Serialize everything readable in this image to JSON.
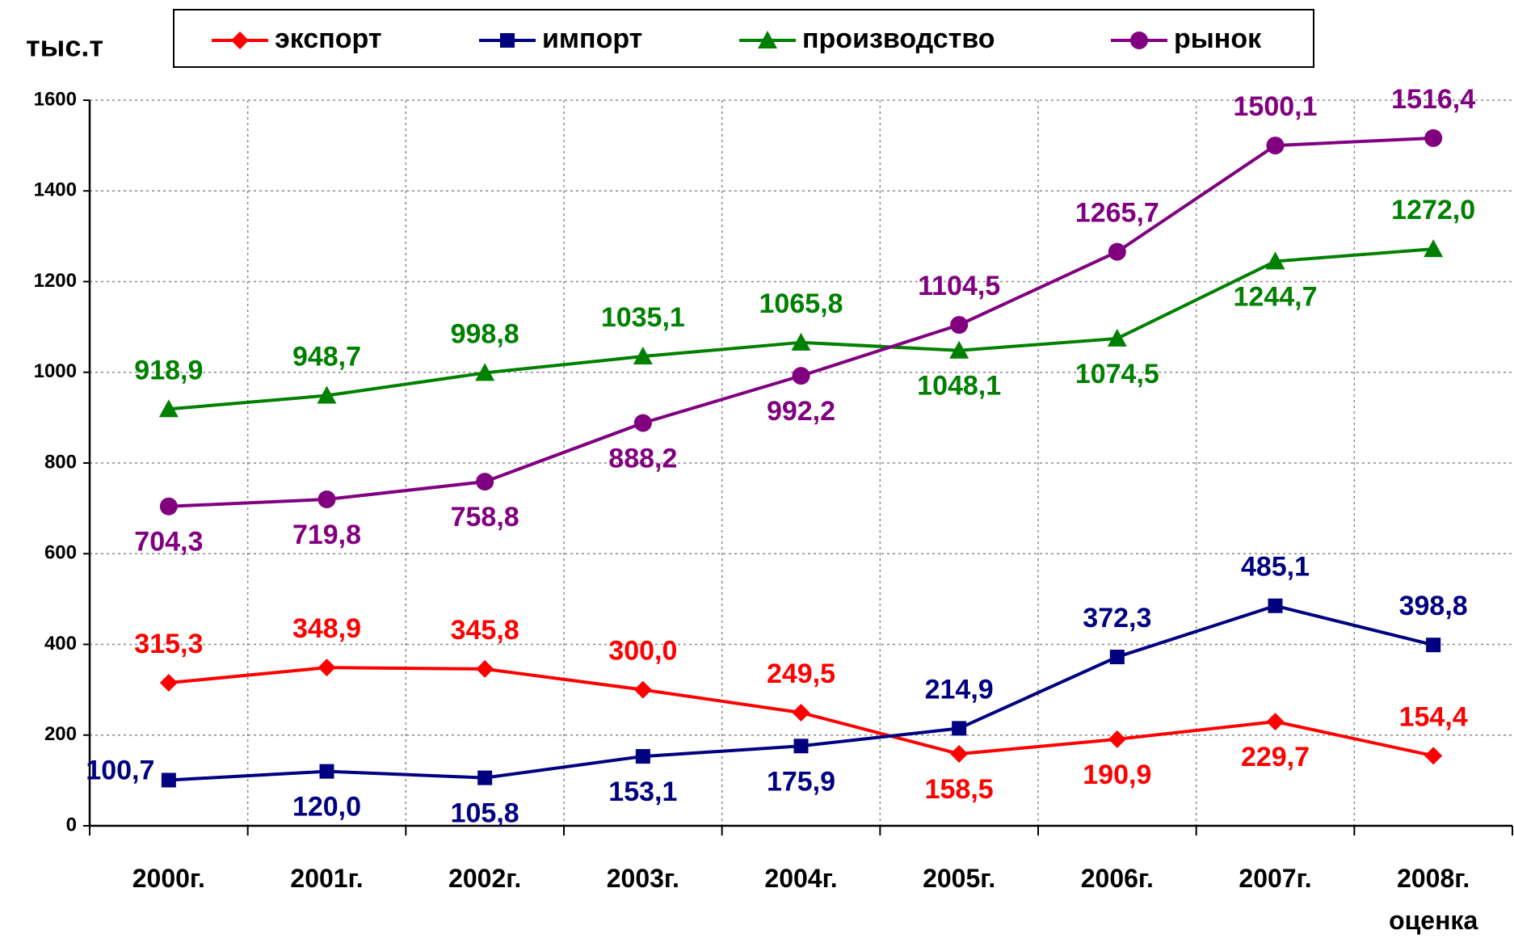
{
  "chart_data": {
    "type": "line",
    "y_label": "тыс.т",
    "categories": [
      "2000г.",
      "2001г.",
      "2002г.",
      "2003г.",
      "2004г.",
      "2005г.",
      "2006г.",
      "2007г.",
      "2008г.\nоценка"
    ],
    "ylim": [
      0,
      1600
    ],
    "yticks": [
      0,
      200,
      400,
      600,
      800,
      1000,
      1200,
      1400,
      1600
    ],
    "grid": true,
    "legend": "top",
    "series": [
      {
        "name": "экспорт",
        "color": "#ff0000",
        "marker": "diamond",
        "values": [
          315.3,
          348.9,
          345.8,
          300.0,
          249.5,
          158.5,
          190.9,
          229.7,
          154.4
        ],
        "value_labels": [
          "315,3",
          "348,9",
          "345,8",
          "300,0",
          "249,5",
          "158,5",
          "190,9",
          "229,7",
          "154,4"
        ]
      },
      {
        "name": "импорт",
        "color": "#000080",
        "marker": "square",
        "values": [
          100.7,
          120.0,
          105.8,
          153.1,
          175.9,
          214.9,
          372.3,
          485.1,
          398.8
        ],
        "value_labels": [
          "100,7",
          "120,0",
          "105,8",
          "153,1",
          "175,9",
          "214,9",
          "372,3",
          "485,1",
          "398,8"
        ]
      },
      {
        "name": "производство",
        "color": "#008000",
        "marker": "triangle",
        "values": [
          918.9,
          948.7,
          998.8,
          1035.1,
          1065.8,
          1048.1,
          1074.5,
          1244.7,
          1272.0
        ],
        "value_labels": [
          "918,9",
          "948,7",
          "998,8",
          "1035,1",
          "1065,8",
          "1048,1",
          "1074,5",
          "1244,7",
          "1272,0"
        ]
      },
      {
        "name": "рынок",
        "color": "#800080",
        "marker": "circle",
        "values": [
          704.3,
          719.8,
          758.8,
          888.2,
          992.2,
          1104.5,
          1265.7,
          1500.1,
          1516.4
        ],
        "value_labels": [
          "704,3",
          "719,8",
          "758,8",
          "888,2",
          "992,2",
          "1104,5",
          "1265,7",
          "1500,1",
          "1516,4"
        ]
      }
    ]
  }
}
